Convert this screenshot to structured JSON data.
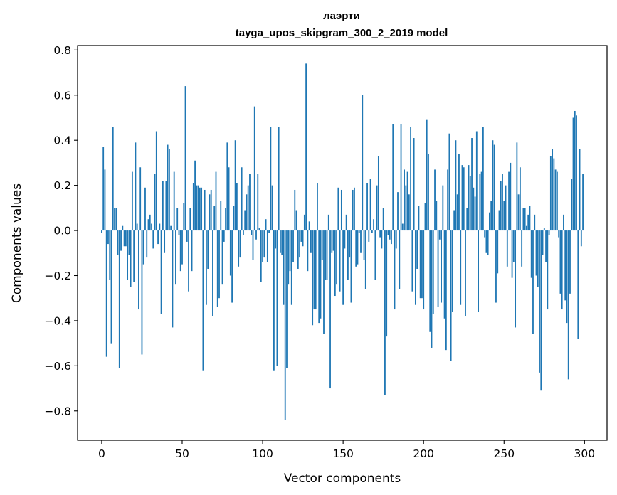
{
  "chart_data": {
    "type": "bar",
    "title": "лаэрти",
    "subtitle": "tayga_upos_skipgram_300_2_2019 model",
    "xlabel": "Vector components",
    "ylabel": "Components values",
    "xlim": [
      -15,
      314
    ],
    "ylim": [
      -0.93,
      0.82
    ],
    "xticks": [
      0,
      50,
      100,
      150,
      200,
      250,
      300
    ],
    "xtick_labels": [
      "0",
      "50",
      "100",
      "150",
      "200",
      "250",
      "300"
    ],
    "yticks": [
      0.8,
      0.6,
      0.4,
      0.2,
      0.0,
      -0.2,
      -0.4,
      -0.6,
      -0.8
    ],
    "ytick_labels": [
      "0.8",
      "0.6",
      "0.4",
      "0.2",
      "0.0",
      "−0.2",
      "−0.4",
      "−0.6",
      "−0.8"
    ],
    "bar_color": "#1f77b4",
    "grid": false,
    "values": [
      -0.01,
      0.37,
      0.27,
      -0.56,
      -0.06,
      -0.22,
      -0.5,
      0.46,
      0.1,
      0.1,
      -0.11,
      -0.61,
      -0.09,
      0.02,
      -0.07,
      -0.07,
      -0.22,
      -0.11,
      -0.25,
      0.26,
      -0.23,
      0.39,
      0.03,
      -0.35,
      0.28,
      -0.55,
      -0.15,
      0.19,
      -0.12,
      0.05,
      0.07,
      0.03,
      -0.08,
      0.25,
      0.44,
      -0.06,
      0.03,
      -0.37,
      0.22,
      -0.1,
      0.22,
      0.38,
      0.36,
      0.02,
      -0.43,
      0.26,
      -0.24,
      0.1,
      -0.02,
      -0.18,
      -0.15,
      0.12,
      0.64,
      -0.05,
      -0.27,
      0.1,
      -0.18,
      0.21,
      0.31,
      0.2,
      0.2,
      0.19,
      0.19,
      -0.62,
      0.18,
      -0.33,
      -0.17,
      0.16,
      0.18,
      -0.38,
      0.11,
      0.26,
      -0.34,
      -0.3,
      0.13,
      -0.24,
      -0.05,
      0.1,
      0.39,
      0.28,
      -0.2,
      -0.32,
      0.11,
      0.4,
      0.21,
      -0.16,
      -0.12,
      0.28,
      -0.02,
      0.09,
      0.16,
      0.2,
      0.25,
      -0.02,
      -0.13,
      0.55,
      -0.04,
      0.25,
      0.01,
      -0.23,
      -0.14,
      -0.12,
      0.05,
      -0.14,
      -0.01,
      0.46,
      0.2,
      -0.62,
      -0.08,
      -0.6,
      0.46,
      -0.1,
      -0.11,
      -0.33,
      -0.84,
      -0.61,
      -0.24,
      -0.18,
      -0.33,
      -0.14,
      0.18,
      0.09,
      -0.17,
      -0.12,
      -0.05,
      -0.07,
      0.07,
      0.74,
      -0.18,
      0.04,
      -0.1,
      -0.42,
      -0.35,
      -0.35,
      0.21,
      -0.41,
      -0.39,
      -0.13,
      -0.46,
      -0.22,
      -0.22,
      0.07,
      -0.7,
      -0.1,
      -0.09,
      -0.29,
      -0.24,
      0.19,
      -0.27,
      0.18,
      -0.33,
      -0.08,
      0.07,
      -0.22,
      -0.12,
      -0.32,
      0.18,
      0.19,
      -0.16,
      -0.15,
      -0.01,
      -0.1,
      0.6,
      -0.13,
      -0.26,
      0.21,
      -0.05,
      0.23,
      -0.01,
      0.05,
      -0.22,
      0.2,
      0.33,
      -0.03,
      -0.08,
      0.1,
      -0.73,
      -0.47,
      -0.02,
      -0.04,
      -0.06,
      0.47,
      -0.35,
      -0.08,
      0.17,
      -0.26,
      0.47,
      0.03,
      0.27,
      0.2,
      0.26,
      0.16,
      0.46,
      -0.27,
      0.41,
      -0.33,
      -0.17,
      0.11,
      -0.3,
      -0.3,
      -0.35,
      0.12,
      0.49,
      0.34,
      -0.45,
      -0.52,
      -0.37,
      0.27,
      0.13,
      -0.34,
      -0.04,
      -0.32,
      0.2,
      -0.39,
      -0.53,
      0.27,
      0.43,
      -0.58,
      -0.36,
      0.09,
      0.4,
      0.16,
      0.34,
      -0.33,
      0.29,
      0.28,
      -0.38,
      0.1,
      0.29,
      0.24,
      0.41,
      0.19,
      0.15,
      0.44,
      -0.36,
      0.25,
      0.26,
      0.46,
      -0.03,
      -0.1,
      -0.11,
      0.08,
      0.13,
      0.4,
      0.38,
      -0.32,
      -0.19,
      0.09,
      0.22,
      0.25,
      0.13,
      0.2,
      -0.16,
      0.26,
      0.3,
      -0.21,
      -0.14,
      -0.43,
      0.39,
      0.16,
      0.28,
      -0.16,
      0.1,
      0.1,
      0.02,
      0.07,
      0.11,
      -0.21,
      -0.46,
      0.07,
      -0.2,
      -0.25,
      -0.63,
      -0.71,
      -0.11,
      0.01,
      -0.14,
      -0.35,
      -0.02,
      0.33,
      0.36,
      0.32,
      0.27,
      0.26,
      -0.03,
      -0.28,
      -0.35,
      0.07,
      -0.31,
      -0.41,
      -0.66,
      -0.28,
      0.23,
      0.5,
      0.53,
      0.51,
      -0.48,
      0.36,
      -0.07,
      0.25
    ]
  }
}
